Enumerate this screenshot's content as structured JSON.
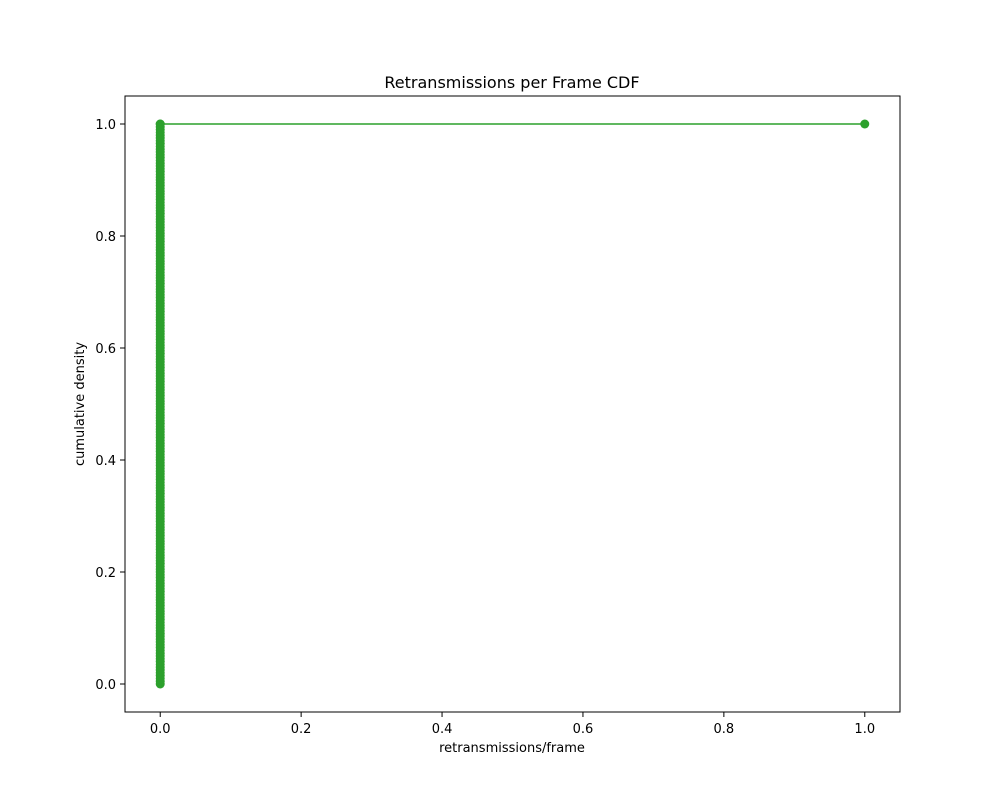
{
  "chart_data": {
    "type": "line",
    "title": "Retransmissions per Frame CDF",
    "xlabel": "retransmissions/frame",
    "ylabel": "cumulative density",
    "xlim": [
      -0.05,
      1.05
    ],
    "ylim": [
      -0.05,
      1.05
    ],
    "xticks": [
      0.0,
      0.2,
      0.4,
      0.6,
      0.8,
      1.0
    ],
    "yticks": [
      0.0,
      0.2,
      0.4,
      0.6,
      0.8,
      1.0
    ],
    "xtick_labels": [
      "0.0",
      "0.2",
      "0.4",
      "0.6",
      "0.8",
      "1.0"
    ],
    "ytick_labels": [
      "0.0",
      "0.2",
      "0.4",
      "0.6",
      "0.8",
      "1.0"
    ],
    "grid": false,
    "legend": "none",
    "series": [
      {
        "color": "#2ca02c",
        "marker": "circle",
        "x": [
          0.0,
          1.0
        ],
        "y": [
          1.0,
          1.0
        ],
        "dense_points": {
          "x": 0.0,
          "y_from": 0.0,
          "y_to": 1.0,
          "description_count": 200
        }
      }
    ]
  }
}
